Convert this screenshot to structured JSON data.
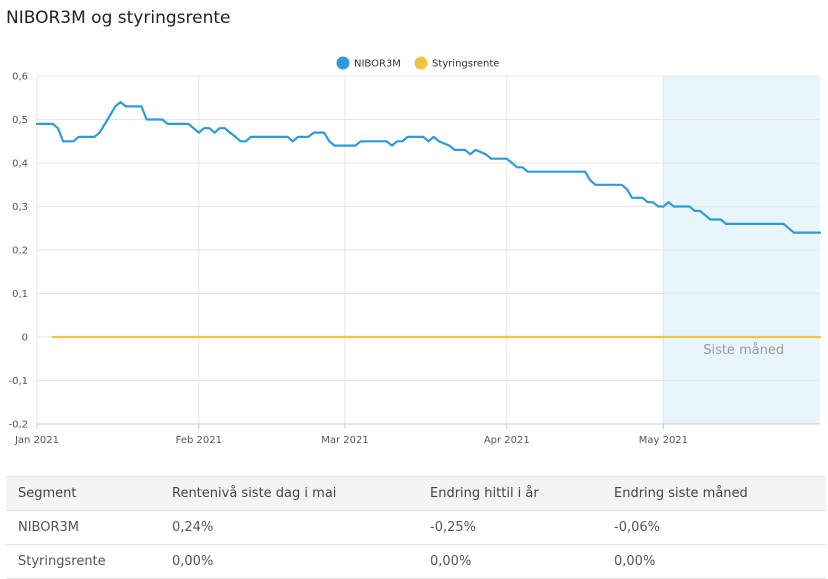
{
  "page": {
    "title": "NIBOR3M og styringsrente"
  },
  "chart_data": {
    "type": "line",
    "x_start": "2021-01-01",
    "x_end": "2021-05-31",
    "x_ticks": [
      {
        "date": "2021-01-01",
        "label": "Jan 2021"
      },
      {
        "date": "2021-02-01",
        "label": "Feb 2021"
      },
      {
        "date": "2021-03-01",
        "label": "Mar 2021"
      },
      {
        "date": "2021-04-01",
        "label": "Apr 2021"
      },
      {
        "date": "2021-05-01",
        "label": "May 2021"
      }
    ],
    "ylim": [
      -0.2,
      0.6
    ],
    "y_ticks": [
      {
        "value": -0.2,
        "label": "-0,2"
      },
      {
        "value": -0.1,
        "label": "-0,1"
      },
      {
        "value": 0,
        "label": "0"
      },
      {
        "value": 0.1,
        "label": "0,1"
      },
      {
        "value": 0.2,
        "label": "0,2"
      },
      {
        "value": 0.3,
        "label": "0,3"
      },
      {
        "value": 0.4,
        "label": "0,4"
      },
      {
        "value": 0.5,
        "label": "0,5"
      },
      {
        "value": 0.6,
        "label": "0,6"
      }
    ],
    "grid": true,
    "legend_position": "top-center",
    "highlight": {
      "start": "2021-05-01",
      "end": "2021-05-31",
      "label": "Siste måned",
      "color": "#e8f6fc"
    },
    "series": [
      {
        "name": "NIBOR3M",
        "color": "#2e9bd9",
        "points": [
          [
            "2021-01-01",
            0.49
          ],
          [
            "2021-01-04",
            0.49
          ],
          [
            "2021-01-05",
            0.48
          ],
          [
            "2021-01-06",
            0.45
          ],
          [
            "2021-01-08",
            0.45
          ],
          [
            "2021-01-09",
            0.46
          ],
          [
            "2021-01-12",
            0.46
          ],
          [
            "2021-01-13",
            0.47
          ],
          [
            "2021-01-14",
            0.49
          ],
          [
            "2021-01-15",
            0.51
          ],
          [
            "2021-01-16",
            0.53
          ],
          [
            "2021-01-17",
            0.54
          ],
          [
            "2021-01-18",
            0.53
          ],
          [
            "2021-01-21",
            0.53
          ],
          [
            "2021-01-22",
            0.5
          ],
          [
            "2021-01-25",
            0.5
          ],
          [
            "2021-01-26",
            0.49
          ],
          [
            "2021-01-30",
            0.49
          ],
          [
            "2021-01-31",
            0.48
          ],
          [
            "2021-02-01",
            0.47
          ],
          [
            "2021-02-02",
            0.48
          ],
          [
            "2021-02-03",
            0.48
          ],
          [
            "2021-02-04",
            0.47
          ],
          [
            "2021-02-05",
            0.48
          ],
          [
            "2021-02-06",
            0.48
          ],
          [
            "2021-02-07",
            0.47
          ],
          [
            "2021-02-08",
            0.46
          ],
          [
            "2021-02-09",
            0.45
          ],
          [
            "2021-02-10",
            0.45
          ],
          [
            "2021-02-11",
            0.46
          ],
          [
            "2021-02-18",
            0.46
          ],
          [
            "2021-02-19",
            0.45
          ],
          [
            "2021-02-20",
            0.46
          ],
          [
            "2021-02-22",
            0.46
          ],
          [
            "2021-02-23",
            0.47
          ],
          [
            "2021-02-25",
            0.47
          ],
          [
            "2021-02-26",
            0.45
          ],
          [
            "2021-02-27",
            0.44
          ],
          [
            "2021-03-03",
            0.44
          ],
          [
            "2021-03-04",
            0.45
          ],
          [
            "2021-03-09",
            0.45
          ],
          [
            "2021-03-10",
            0.44
          ],
          [
            "2021-03-11",
            0.45
          ],
          [
            "2021-03-12",
            0.45
          ],
          [
            "2021-03-13",
            0.46
          ],
          [
            "2021-03-16",
            0.46
          ],
          [
            "2021-03-17",
            0.45
          ],
          [
            "2021-03-18",
            0.46
          ],
          [
            "2021-03-19",
            0.45
          ],
          [
            "2021-03-21",
            0.44
          ],
          [
            "2021-03-22",
            0.43
          ],
          [
            "2021-03-24",
            0.43
          ],
          [
            "2021-03-25",
            0.42
          ],
          [
            "2021-03-26",
            0.43
          ],
          [
            "2021-03-28",
            0.42
          ],
          [
            "2021-03-29",
            0.41
          ],
          [
            "2021-04-01",
            0.41
          ],
          [
            "2021-04-02",
            0.4
          ],
          [
            "2021-04-03",
            0.39
          ],
          [
            "2021-04-04",
            0.39
          ],
          [
            "2021-04-05",
            0.38
          ],
          [
            "2021-04-16",
            0.38
          ],
          [
            "2021-04-17",
            0.36
          ],
          [
            "2021-04-18",
            0.35
          ],
          [
            "2021-04-23",
            0.35
          ],
          [
            "2021-04-24",
            0.34
          ],
          [
            "2021-04-25",
            0.32
          ],
          [
            "2021-04-27",
            0.32
          ],
          [
            "2021-04-28",
            0.31
          ],
          [
            "2021-04-29",
            0.31
          ],
          [
            "2021-04-30",
            0.3
          ],
          [
            "2021-05-01",
            0.3
          ],
          [
            "2021-05-02",
            0.31
          ],
          [
            "2021-05-03",
            0.3
          ],
          [
            "2021-05-06",
            0.3
          ],
          [
            "2021-05-07",
            0.29
          ],
          [
            "2021-05-08",
            0.29
          ],
          [
            "2021-05-09",
            0.28
          ],
          [
            "2021-05-10",
            0.27
          ],
          [
            "2021-05-12",
            0.27
          ],
          [
            "2021-05-13",
            0.26
          ],
          [
            "2021-05-24",
            0.26
          ],
          [
            "2021-05-25",
            0.25
          ],
          [
            "2021-05-26",
            0.24
          ],
          [
            "2021-05-31",
            0.24
          ]
        ]
      },
      {
        "name": "Styringsrente",
        "color": "#f2c343",
        "points": [
          [
            "2021-01-04",
            0.0
          ],
          [
            "2021-05-31",
            0.0
          ]
        ]
      }
    ]
  },
  "table": {
    "headers": [
      "Segment",
      "Rentenivå siste dag i mai",
      "Endring hittil i år",
      "Endring siste måned"
    ],
    "rows": [
      [
        "NIBOR3M",
        "0,24%",
        "-0,25%",
        "-0,06%"
      ],
      [
        "Styringsrente",
        "0,00%",
        "0,00%",
        "0,00%"
      ]
    ]
  }
}
